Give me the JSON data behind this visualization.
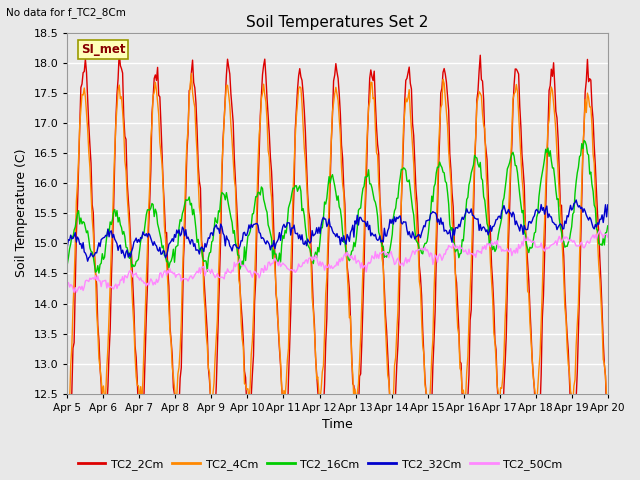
{
  "title": "Soil Temperatures Set 2",
  "xlabel": "Time",
  "ylabel": "Soil Temperature (C)",
  "top_left_text": "No data for f_TC2_8Cm",
  "annotation_text": "SI_met",
  "ylim": [
    12.5,
    18.5
  ],
  "yticks": [
    12.5,
    13.0,
    13.5,
    14.0,
    14.5,
    15.0,
    15.5,
    16.0,
    16.5,
    17.0,
    17.5,
    18.0,
    18.5
  ],
  "xtick_labels": [
    "Apr 5",
    "Apr 6",
    "Apr 7",
    "Apr 8",
    "Apr 9",
    "Apr 10",
    "Apr 11",
    "Apr 12",
    "Apr 13",
    "Apr 14",
    "Apr 15",
    "Apr 16",
    "Apr 17",
    "Apr 18",
    "Apr 19",
    "Apr 20"
  ],
  "line_colors": [
    "#dd0000",
    "#ff8800",
    "#00cc00",
    "#0000cc",
    "#ff88ff"
  ],
  "line_labels": [
    "TC2_2Cm",
    "TC2_4Cm",
    "TC2_16Cm",
    "TC2_32Cm",
    "TC2_50Cm"
  ],
  "line_widths": [
    1.0,
    1.0,
    1.0,
    1.0,
    1.0
  ],
  "bg_color": "#e8e8e8",
  "grid_color": "#ffffff",
  "n_points": 480,
  "n_days": 15
}
